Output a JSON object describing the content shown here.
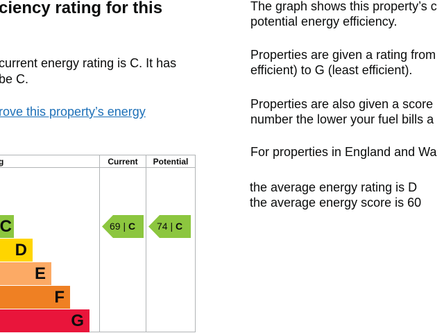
{
  "left": {
    "heading": "ciency rating for this",
    "paragraph_line1": "current energy rating is C. It has",
    "paragraph_line2": "be C.",
    "link": "rove this property’s energy"
  },
  "right": {
    "p1_line1": "The graph shows this property’s c",
    "p1_line2": "potential energy efficiency.",
    "p2_line1": "Properties are given a rating from",
    "p2_line2": "efficient) to G (least efficient).",
    "p3_line1": "Properties are also given a score",
    "p3_line2": "number the lower your fuel bills a",
    "p4": "For properties in England and Wa",
    "p5_line1": "the average energy rating is D",
    "p5_line2": "the average energy score is 60"
  },
  "chart": {
    "col_rating": "g",
    "col_current": "Current",
    "col_potential": "Potential",
    "bands": [
      {
        "letter": "C",
        "color": "#8cc63f"
      },
      {
        "letter": "D",
        "color": "#ffd500"
      },
      {
        "letter": "E",
        "color": "#fcaa65"
      },
      {
        "letter": "F",
        "color": "#ef8023"
      },
      {
        "letter": "G",
        "color": "#e9153b"
      }
    ],
    "current": {
      "score": "69",
      "separator": "|",
      "letter": "C",
      "color": "#8cc63f"
    },
    "potential": {
      "score": "74",
      "separator": "|",
      "letter": "C",
      "color": "#8cc63f"
    }
  }
}
